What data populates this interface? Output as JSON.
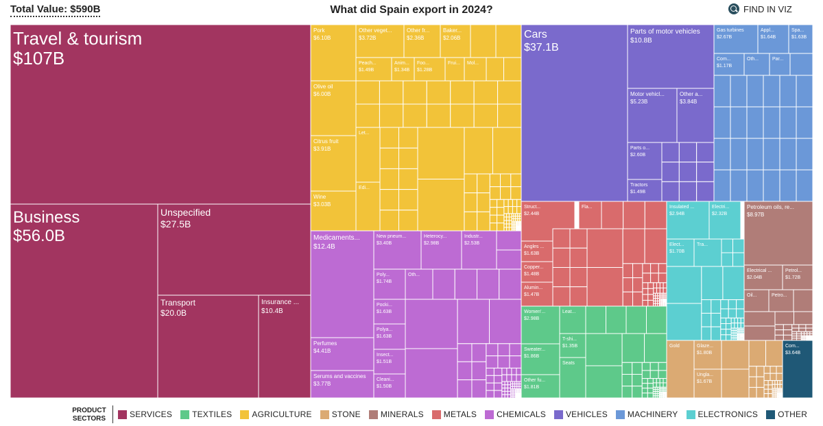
{
  "header": {
    "total_value": "Total Value: $590B",
    "title": "What did Spain export in 2024?",
    "find_label": "FIND IN VIZ"
  },
  "legend": {
    "title_line1": "PRODUCT",
    "title_line2": "SECTORS",
    "items": [
      {
        "key": "services",
        "label": "SERVICES",
        "color": "#a23560"
      },
      {
        "key": "textiles",
        "label": "TEXTILES",
        "color": "#5ec98a"
      },
      {
        "key": "agriculture",
        "label": "AGRICULTURE",
        "color": "#f2c339"
      },
      {
        "key": "stone",
        "label": "STONE",
        "color": "#dbaa73"
      },
      {
        "key": "minerals",
        "label": "MINERALS",
        "color": "#b07d78"
      },
      {
        "key": "metals",
        "label": "METALS",
        "color": "#d96b6c"
      },
      {
        "key": "chemicals",
        "label": "CHEMICALS",
        "color": "#bd6bd3"
      },
      {
        "key": "vehicles",
        "label": "VEHICLES",
        "color": "#7a6acc"
      },
      {
        "key": "machinery",
        "label": "MACHINERY",
        "color": "#6b98d8"
      },
      {
        "key": "electronics",
        "label": "ELECTRONICS",
        "color": "#5ccfd1"
      },
      {
        "key": "other",
        "label": "OTHER",
        "color": "#1f5876"
      }
    ]
  },
  "chart_data": {
    "type": "treemap",
    "title": "What did Spain export in 2024?",
    "total": "$590B",
    "sectors": [
      {
        "sector": "services",
        "color": "#a23560",
        "items": [
          {
            "label": "Travel & tourism",
            "value": "$107B",
            "size": "xl"
          },
          {
            "label": "Business",
            "value": "$56.0B",
            "size": "xl"
          },
          {
            "label": "Unspecified",
            "value": "$27.5B",
            "size": "l"
          },
          {
            "label": "Transport",
            "value": "$20.0B",
            "size": "m"
          },
          {
            "label": "Insurance ...",
            "value": "$10.4B",
            "size": "s"
          }
        ]
      },
      {
        "sector": "agriculture",
        "color": "#f2c339",
        "items": [
          {
            "label": "Pork",
            "value": "$6.10B"
          },
          {
            "label": "Other veget...",
            "value": "$3.72B"
          },
          {
            "label": "Other fr...",
            "value": "$2.36B"
          },
          {
            "label": "Baker...",
            "value": "$2.06B"
          },
          {
            "label": "Peach...",
            "value": "$1.49B"
          },
          {
            "label": "Anim...",
            "value": "$1.34B"
          },
          {
            "label": "Foo...",
            "value": "$1.28B"
          },
          {
            "label": "Frui...",
            "value": ""
          },
          {
            "label": "Mol...",
            "value": ""
          },
          {
            "label": "Olive oil",
            "value": "$6.00B"
          },
          {
            "label": "Citrus fruit",
            "value": "$3.91B"
          },
          {
            "label": "Wine",
            "value": "$3.03B"
          },
          {
            "label": "Let...",
            "value": ""
          },
          {
            "label": "Edi...",
            "value": ""
          }
        ]
      },
      {
        "sector": "vehicles",
        "color": "#7a6acc",
        "items": [
          {
            "label": "Cars",
            "value": "$37.1B",
            "size": "l"
          },
          {
            "label": "Parts of motor vehicles",
            "value": "$10.8B"
          },
          {
            "label": "Motor vehicl...",
            "value": "$5.23B"
          },
          {
            "label": "Other a...",
            "value": "$3.84B"
          },
          {
            "label": "Parts o...",
            "value": "$2.60B"
          },
          {
            "label": "Tractors",
            "value": "$1.49B"
          }
        ]
      },
      {
        "sector": "machinery",
        "color": "#6b98d8",
        "items": [
          {
            "label": "Gas turbines",
            "value": "$2.67B"
          },
          {
            "label": "Appl...",
            "value": "$1.64B"
          },
          {
            "label": "Spa...",
            "value": "$1.63B"
          },
          {
            "label": "Com...",
            "value": "$1.17B"
          },
          {
            "label": "Oth...",
            "value": ""
          },
          {
            "label": "Par...",
            "value": ""
          }
        ]
      },
      {
        "sector": "chemicals",
        "color": "#bd6bd3",
        "items": [
          {
            "label": "Medicaments...",
            "value": "$12.4B"
          },
          {
            "label": "New pneum...",
            "value": "$3.40B"
          },
          {
            "label": "Heterocy...",
            "value": "$2.98B"
          },
          {
            "label": "Industr...",
            "value": "$2.53B"
          },
          {
            "label": "Poly...",
            "value": "$1.74B"
          },
          {
            "label": "Oth...",
            "value": ""
          },
          {
            "label": "Pocki...",
            "value": "$1.63B"
          },
          {
            "label": "Polya...",
            "value": "$1.63B"
          },
          {
            "label": "Insect...",
            "value": "$1.51B"
          },
          {
            "label": "Cleani...",
            "value": "$1.50B"
          },
          {
            "label": "Perfumes",
            "value": "$4.41B"
          },
          {
            "label": "Serums and vaccines",
            "value": "$3.77B"
          }
        ]
      },
      {
        "sector": "metals",
        "color": "#d96b6c",
        "items": [
          {
            "label": "Struct...",
            "value": "$2.44B"
          },
          {
            "label": "Fla...",
            "value": ""
          },
          {
            "label": "Angles ...",
            "value": "$1.63B"
          },
          {
            "label": "Copper...",
            "value": "$1.48B"
          },
          {
            "label": "Alumin...",
            "value": "$1.47B"
          }
        ]
      },
      {
        "sector": "electronics",
        "color": "#5ccfd1",
        "items": [
          {
            "label": "Insulated ...",
            "value": "$2.94B"
          },
          {
            "label": "Electri...",
            "value": "$2.32B"
          },
          {
            "label": "Elect...",
            "value": "$1.70B"
          },
          {
            "label": "Tra...",
            "value": ""
          }
        ]
      },
      {
        "sector": "minerals",
        "color": "#b07d78",
        "items": [
          {
            "label": "Petroleum oils, re...",
            "value": "$8.97B"
          },
          {
            "label": "Electrical ...",
            "value": "$2.04B"
          },
          {
            "label": "Petrol...",
            "value": "$1.72B"
          },
          {
            "label": "Oil...",
            "value": ""
          },
          {
            "label": "Petro...",
            "value": ""
          }
        ]
      },
      {
        "sector": "textiles",
        "color": "#5ec98a",
        "items": [
          {
            "label": "Women'...",
            "value": "$2.98B"
          },
          {
            "label": "Leat...",
            "value": ""
          },
          {
            "label": "T-shi...",
            "value": "$1.35B"
          },
          {
            "label": "Sweater...",
            "value": "$1.86B"
          },
          {
            "label": "Other fu...",
            "value": "$1.81B"
          },
          {
            "label": "Seats",
            "value": ""
          }
        ]
      },
      {
        "sector": "stone",
        "color": "#dbaa73",
        "items": [
          {
            "label": "Gold",
            "value": ""
          },
          {
            "label": "Glaze...",
            "value": "$1.80B"
          },
          {
            "label": "Ungla...",
            "value": "$1.67B"
          }
        ]
      },
      {
        "sector": "other",
        "color": "#1f5876",
        "items": [
          {
            "label": "Com...",
            "value": "$3.64B"
          }
        ]
      }
    ]
  }
}
